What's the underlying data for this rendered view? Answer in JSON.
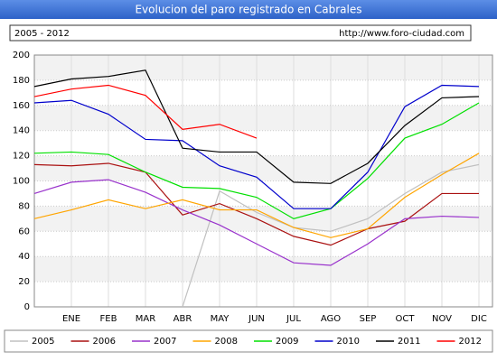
{
  "chart_data": {
    "type": "line",
    "title": "Evolucion del paro registrado en Cabrales",
    "subtitle": "2005 - 2012",
    "source": "http://www.foro-ciudad.com",
    "categories": [
      null,
      "ENE",
      "FEB",
      "MAR",
      "ABR",
      "MAY",
      "JUN",
      "JUL",
      "AGO",
      "SEP",
      "OCT",
      "NOV",
      "DIC"
    ],
    "ylim": [
      0,
      200
    ],
    "yticks": [
      0,
      20,
      40,
      60,
      80,
      100,
      120,
      140,
      160,
      180,
      200
    ],
    "grid": true,
    "legend": "bottom",
    "series": [
      {
        "name": "2005",
        "color": "#c0c0c0",
        "values": [
          null,
          null,
          null,
          null,
          0,
          92,
          75,
          63,
          60,
          70,
          90,
          107,
          113
        ]
      },
      {
        "name": "2006",
        "color": "#aa1111",
        "values": [
          113,
          112,
          114,
          107,
          73,
          82,
          70,
          56,
          49,
          62,
          68,
          90,
          90
        ]
      },
      {
        "name": "2007",
        "color": "#9932cc",
        "values": [
          90,
          99,
          101,
          91,
          77,
          65,
          50,
          35,
          33,
          50,
          70,
          72,
          71
        ]
      },
      {
        "name": "2008",
        "color": "#ffa500",
        "values": [
          70,
          77,
          85,
          78,
          85,
          77,
          77,
          63,
          55,
          62,
          87,
          105,
          122
        ]
      },
      {
        "name": "2009",
        "color": "#00e000",
        "values": [
          122,
          123,
          121,
          107,
          95,
          94,
          87,
          70,
          78,
          102,
          134,
          145,
          162
        ]
      },
      {
        "name": "2010",
        "color": "#0000cc",
        "values": [
          162,
          164,
          153,
          133,
          132,
          112,
          103,
          78,
          78,
          107,
          159,
          176,
          175
        ]
      },
      {
        "name": "2011",
        "color": "#000000",
        "values": [
          175,
          181,
          183,
          188,
          126,
          123,
          123,
          99,
          98,
          114,
          144,
          166,
          167
        ]
      },
      {
        "name": "2012",
        "color": "#ff0000",
        "values": [
          167,
          173,
          176,
          168,
          141,
          145,
          134,
          null,
          null,
          null,
          null,
          null,
          null
        ]
      }
    ]
  }
}
